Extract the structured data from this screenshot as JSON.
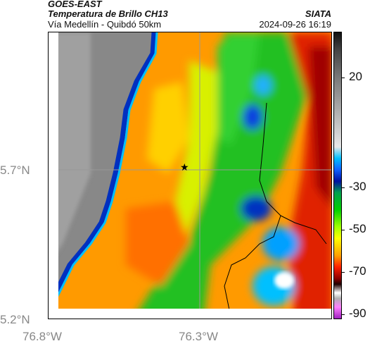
{
  "header": {
    "satellite": "GOES-EAST",
    "product": "Temperatura de Brillo CH13",
    "route": "Vía Medellín - Quibdó 50km",
    "org": "SIATA",
    "datetime": "2024-09-26 16:19"
  },
  "axes": {
    "lat_labels": [
      "5.7°N",
      "5.2°N"
    ],
    "lon_labels": [
      "76.8°W",
      "76.3°W"
    ]
  },
  "colorbar": {
    "labels": [
      "20",
      "-30",
      "-50",
      "-70",
      "-90"
    ]
  },
  "colors": {
    "ocean": "#8a8a8a",
    "warm_land": "#ff9000",
    "deep_red": "#b00000",
    "green": "#00c020",
    "blue": "#0030c0"
  },
  "icons": {
    "marker": "star-icon"
  }
}
